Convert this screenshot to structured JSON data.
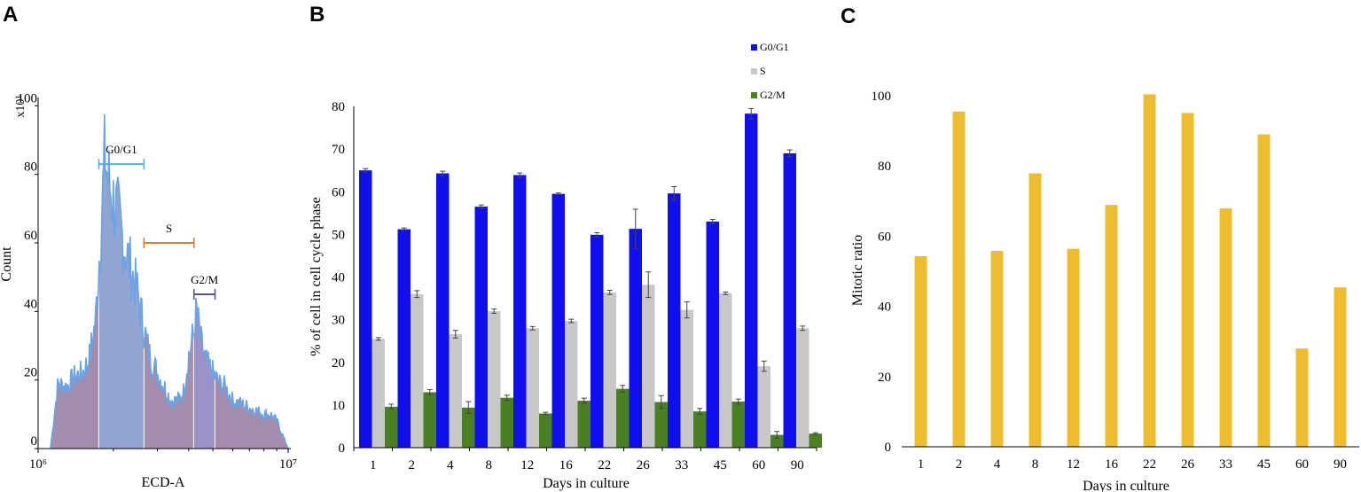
{
  "panels": {
    "a": "A",
    "b": "B",
    "c": "C"
  },
  "colors": {
    "g0g1": "#1010ee",
    "s": "#c8c8c8",
    "g2m": "#4a7f22",
    "mitotic": "#f0bc2f",
    "hist_line": "#6aa3e6",
    "gate_g0g1": "#55aaee",
    "gate_s": "#e07a3a",
    "gate_g2m": "#5a4d9a",
    "region_g0g1": "#7f95c8",
    "region_s": "#93789e",
    "region_g2m": "#8a7fc0"
  },
  "chart_data": [
    {
      "type": "area",
      "title": "",
      "xlabel": "ECD-A",
      "ylabel": "Count",
      "y_multiplier_label": "x10¹",
      "xscale": "log",
      "xlim": [
        1000000,
        10000000
      ],
      "x_ticks": [
        "10⁶",
        "10⁷"
      ],
      "ylim": [
        0,
        105
      ],
      "y_ticks": [
        0,
        20,
        40,
        60,
        80,
        100
      ],
      "gates": [
        {
          "name": "G0/G1",
          "x_range": [
            1750000,
            2650000
          ],
          "y": 83
        },
        {
          "name": "S",
          "x_range": [
            2650000,
            4200000
          ],
          "y": 60
        },
        {
          "name": "G2/M",
          "x_range": [
            4200000,
            5100000
          ],
          "y": 45
        }
      ],
      "histogram": {
        "x": [
          1120000,
          1200000,
          1300000,
          1400000,
          1500000,
          1600000,
          1700000,
          1800000,
          1850000,
          1900000,
          2000000,
          2100000,
          2200000,
          2300000,
          2400000,
          2500000,
          2600000,
          2700000,
          2800000,
          3000000,
          3200000,
          3400000,
          3600000,
          3800000,
          4000000,
          4200000,
          4300000,
          4500000,
          4700000,
          5000000,
          5300000,
          5600000,
          6000000,
          6500000,
          7000000,
          7500000,
          8000000,
          8500000,
          9000000,
          9500000,
          10000000
        ],
        "y": [
          0,
          19,
          18,
          21,
          22,
          26,
          38,
          70,
          86,
          79,
          72,
          67,
          60,
          55,
          50,
          45,
          38,
          32,
          27,
          22,
          18,
          14,
          14,
          16,
          27,
          34,
          40,
          30,
          25,
          22,
          19,
          18,
          14,
          13,
          12,
          11,
          10,
          10,
          8,
          4,
          0
        ]
      }
    },
    {
      "type": "bar",
      "title": "",
      "xlabel": "Days in culture",
      "ylabel": "% of cell in cell cycle phase",
      "ylim": [
        0,
        80
      ],
      "y_ticks": [
        0,
        10,
        20,
        30,
        40,
        50,
        60,
        70,
        80
      ],
      "categories": [
        "1",
        "2",
        "4",
        "8",
        "12",
        "16",
        "22",
        "26",
        "33",
        "45",
        "60",
        "90"
      ],
      "legend_position": "top-right",
      "series": [
        {
          "name": "G0/G1",
          "values": [
            65,
            51.2,
            64.3,
            56.5,
            63.9,
            59.5,
            49.9,
            51.3,
            59.6,
            53,
            78.3,
            69
          ],
          "errors": [
            0.4,
            0.3,
            0.5,
            0.4,
            0.5,
            0.2,
            0.5,
            4.6,
            1.6,
            0.5,
            1.2,
            0.8
          ]
        },
        {
          "name": "S",
          "values": [
            25.5,
            36,
            26.6,
            32,
            28,
            29.7,
            36.4,
            38.2,
            32.3,
            36.2,
            19.1,
            28
          ]
        },
        {
          "name": "G2/M",
          "values": [
            9.6,
            13,
            9.4,
            11.7,
            8,
            11,
            13.8,
            10.7,
            8.5,
            10.8,
            3,
            3.3
          ]
        }
      ],
      "s_errors": [
        0.3,
        0.8,
        0.9,
        0.5,
        0.4,
        0.4,
        0.5,
        3,
        1.9,
        0.3,
        1.2,
        0.5
      ],
      "g2m_errors": [
        0.6,
        0.6,
        1.4,
        0.6,
        0.3,
        0.6,
        0.8,
        1.5,
        0.7,
        0.6,
        0.8,
        0.2
      ]
    },
    {
      "type": "bar",
      "title": "",
      "xlabel": "Days in culture",
      "ylabel": "Mitotic ratio",
      "ylim": [
        0,
        100
      ],
      "y_ticks": [
        0,
        20,
        40,
        60,
        80,
        100
      ],
      "categories": [
        "1",
        "2",
        "4",
        "8",
        "12",
        "16",
        "22",
        "26",
        "33",
        "45",
        "60",
        "90"
      ],
      "values": [
        54.3,
        95.5,
        55.8,
        77.9,
        56.4,
        68.9,
        100.4,
        95.1,
        67.9,
        89,
        28,
        45.4
      ]
    }
  ]
}
